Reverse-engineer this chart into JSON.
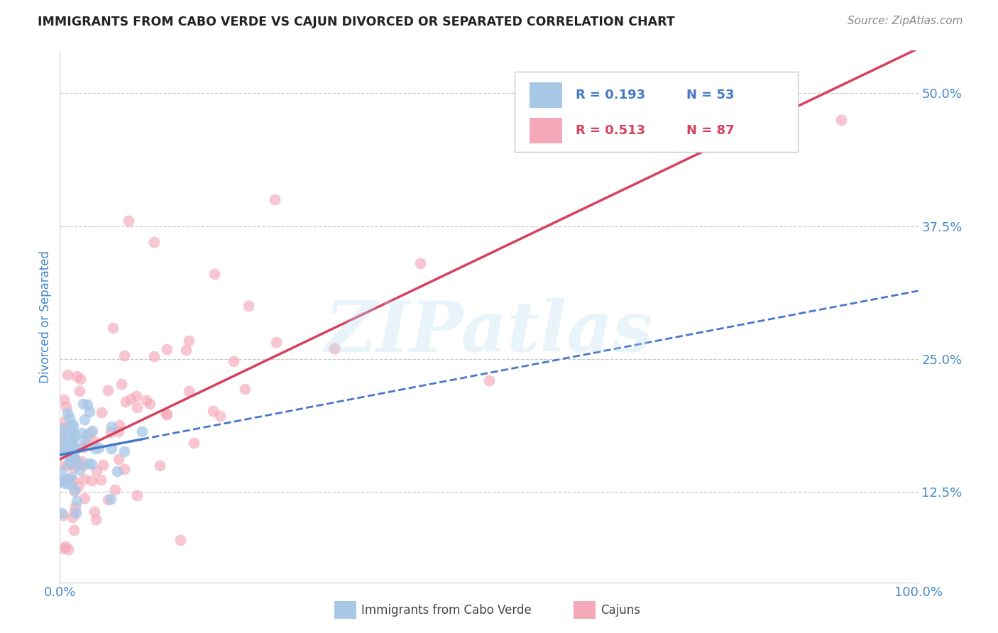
{
  "title": "IMMIGRANTS FROM CABO VERDE VS CAJUN DIVORCED OR SEPARATED CORRELATION CHART",
  "source": "Source: ZipAtlas.com",
  "ylabel": "Divorced or Separated",
  "legend_label1": "Immigrants from Cabo Verde",
  "legend_label2": "Cajuns",
  "r1": 0.193,
  "n1": 53,
  "r2": 0.513,
  "n2": 87,
  "color1": "#a8c8e8",
  "color2": "#f4a8b8",
  "line_color1": "#4878c8",
  "line_color2": "#d84060",
  "xmin": 0.0,
  "xmax": 1.0,
  "ymin": 0.04,
  "ymax": 0.54,
  "yticks": [
    0.125,
    0.25,
    0.375,
    0.5
  ],
  "yticklabels": [
    "12.5%",
    "25.0%",
    "37.5%",
    "50.0%"
  ],
  "watermark_text": "ZIPatlas",
  "background_color": "#ffffff",
  "grid_color": "#c8c8c8",
  "title_color": "#222222",
  "source_color": "#888888",
  "axis_label_color": "#4488cc",
  "tick_color": "#4488cc"
}
